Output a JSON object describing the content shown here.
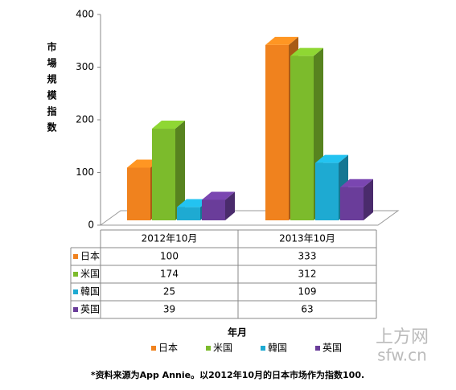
{
  "chart_data": {
    "type": "bar3d",
    "y_label": "市場規模指数",
    "x_label": "年月",
    "categories": [
      "2012年10月",
      "2013年10月"
    ],
    "series": [
      {
        "name": "日本",
        "color": "#f0821e",
        "values": [
          100,
          333
        ]
      },
      {
        "name": "米国",
        "color": "#7cbb2c",
        "values": [
          174,
          312
        ]
      },
      {
        "name": "韓国",
        "color": "#1eaad2",
        "values": [
          25,
          109
        ]
      },
      {
        "name": "英国",
        "color": "#6a3d9a",
        "values": [
          39,
          63
        ]
      }
    ],
    "ylim": [
      0,
      400
    ],
    "yticks": [
      0,
      100,
      200,
      300,
      400
    ],
    "footnote": "*资料来源为App Annie。以2012年10月的日本市场作为指数100.",
    "watermark": [
      "上方网",
      "sfw.cn"
    ]
  }
}
